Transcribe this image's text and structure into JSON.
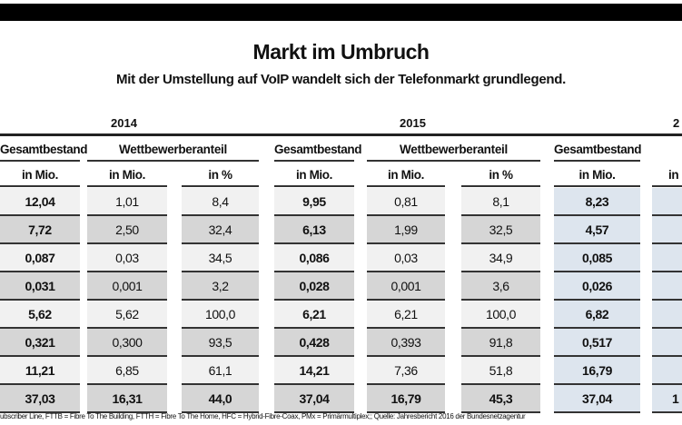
{
  "title": "Markt im Umbruch",
  "subtitle": "Mit der Umstellung auf VoIP wandelt sich der Telefonmarkt grundlegend.",
  "years": [
    "2014",
    "2015",
    "2"
  ],
  "headers": {
    "gesamt": "Gesamtbestand",
    "wettbewerb": "Wettbewerberanteil",
    "mio": "in Mio.",
    "pct": "in %",
    "partial": "in"
  },
  "columns": [
    {
      "values": [
        "12,04",
        "7,72",
        "0,087",
        "0,031",
        "5,62",
        "0,321",
        "11,21",
        "37,03"
      ]
    },
    {
      "values": [
        "1,01",
        "2,50",
        "0,03",
        "0,001",
        "5,62",
        "0,300",
        "6,85",
        "16,31"
      ]
    },
    {
      "values": [
        "8,4",
        "32,4",
        "34,5",
        "3,2",
        "100,0",
        "93,5",
        "61,1",
        "44,0"
      ]
    },
    {
      "values": [
        "9,95",
        "6,13",
        "0,086",
        "0,028",
        "6,21",
        "0,428",
        "14,21",
        "37,04"
      ]
    },
    {
      "values": [
        "0,81",
        "1,99",
        "0,03",
        "0,001",
        "6,21",
        "0,393",
        "7,36",
        "16,79"
      ]
    },
    {
      "values": [
        "8,1",
        "32,5",
        "34,9",
        "3,6",
        "100,0",
        "91,8",
        "51,8",
        "45,3"
      ]
    },
    {
      "values": [
        "8,23",
        "4,57",
        "0,085",
        "0,026",
        "6,82",
        "0,517",
        "16,79",
        "37,04"
      ]
    },
    {
      "values": [
        "",
        "",
        "",
        "",
        "",
        "",
        "",
        "1"
      ]
    }
  ],
  "footnote": "ubscriber Line, FTTB = Fibre To The Building, FTTH = Fibre To The Home, HFC = Hybrid-Fibre-Coax, PMx = Primärmultiplex;;  Quelle: Jahresbericht 2016 der Bundesnetzagentur",
  "colors": {
    "highlight_column": "#dde5ee",
    "row_light": "#f1f1f1",
    "row_dark": "#d6d6d6"
  }
}
